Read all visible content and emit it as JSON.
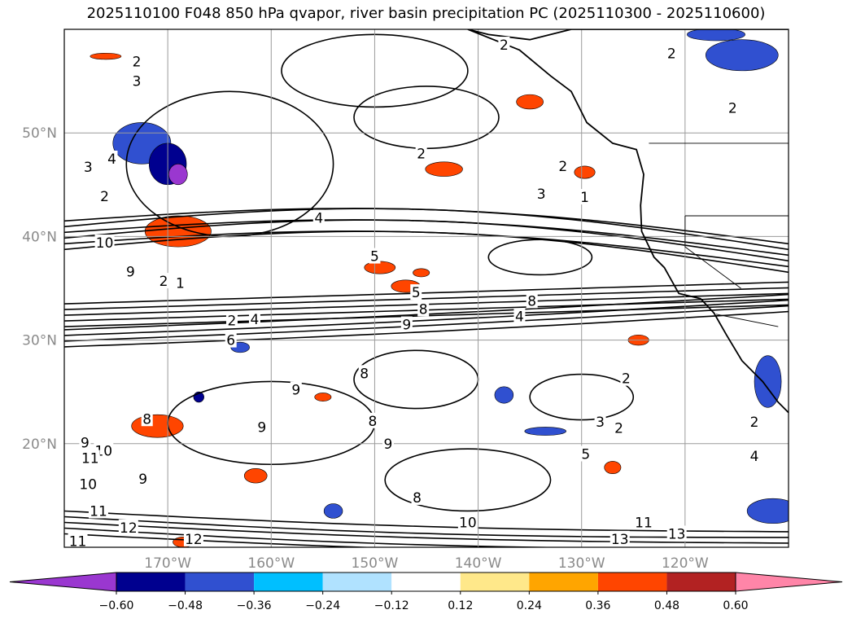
{
  "title": "2025110100 F048 850 hPa qvapor, river basin precipitation PC (2025110300 - 2025110600)",
  "chart_data": {
    "type": "contour-map",
    "title": "2025110100 F048 850 hPa qvapor, river basin precipitation PC (2025110300 - 2025110600)",
    "lon_range": [
      -180,
      -110
    ],
    "lat_range": [
      10,
      60
    ],
    "lon_ticks": [
      "170°W",
      "160°W",
      "150°W",
      "140°W",
      "130°W",
      "120°W"
    ],
    "lon_tick_values": [
      -170,
      -160,
      -150,
      -140,
      -130,
      -120
    ],
    "lat_ticks": [
      "50°N",
      "40°N",
      "30°N",
      "20°N"
    ],
    "lat_tick_values": [
      50,
      40,
      30,
      20
    ],
    "grid": true,
    "contour_field": "850 hPa qvapor",
    "contour_labels": [
      {
        "v": "2",
        "lon": -173.0,
        "lat": 56.9
      },
      {
        "v": "3",
        "lon": -173.0,
        "lat": 55.0
      },
      {
        "v": "2",
        "lon": -137.5,
        "lat": 58.5
      },
      {
        "v": "2",
        "lon": -121.3,
        "lat": 57.7
      },
      {
        "v": "2",
        "lon": -115.4,
        "lat": 52.4
      },
      {
        "v": "2",
        "lon": -145.5,
        "lat": 48.0
      },
      {
        "v": "4",
        "lon": -175.4,
        "lat": 47.5
      },
      {
        "v": "3",
        "lon": -177.7,
        "lat": 46.7
      },
      {
        "v": "2",
        "lon": -176.1,
        "lat": 43.9
      },
      {
        "v": "4",
        "lon": -155.4,
        "lat": 41.8
      },
      {
        "v": "2",
        "lon": -131.8,
        "lat": 46.8
      },
      {
        "v": "3",
        "lon": -133.9,
        "lat": 44.1
      },
      {
        "v": "1",
        "lon": -129.7,
        "lat": 43.8
      },
      {
        "v": "10",
        "lon": -176.1,
        "lat": 39.4
      },
      {
        "v": "5",
        "lon": -150.0,
        "lat": 38.1
      },
      {
        "v": "9",
        "lon": -173.6,
        "lat": 36.6
      },
      {
        "v": "2",
        "lon": -170.4,
        "lat": 35.7
      },
      {
        "v": "1",
        "lon": -168.8,
        "lat": 35.5
      },
      {
        "v": "5",
        "lon": -146.0,
        "lat": 34.6
      },
      {
        "v": "8",
        "lon": -145.3,
        "lat": 33.0
      },
      {
        "v": "8",
        "lon": -134.8,
        "lat": 33.8
      },
      {
        "v": "4",
        "lon": -136.0,
        "lat": 32.3
      },
      {
        "v": "2",
        "lon": -163.8,
        "lat": 31.9
      },
      {
        "v": "4",
        "lon": -161.6,
        "lat": 32.0
      },
      {
        "v": "9",
        "lon": -146.9,
        "lat": 31.5
      },
      {
        "v": "6",
        "lon": -163.9,
        "lat": 30.0
      },
      {
        "v": "8",
        "lon": -151.0,
        "lat": 26.8
      },
      {
        "v": "2",
        "lon": -125.7,
        "lat": 26.3
      },
      {
        "v": "9",
        "lon": -157.6,
        "lat": 25.2
      },
      {
        "v": "8",
        "lon": -172.0,
        "lat": 22.4
      },
      {
        "v": "8",
        "lon": -150.2,
        "lat": 22.2
      },
      {
        "v": "9",
        "lon": -160.9,
        "lat": 21.6
      },
      {
        "v": "3",
        "lon": -128.2,
        "lat": 22.1
      },
      {
        "v": "2",
        "lon": -126.4,
        "lat": 21.5
      },
      {
        "v": "2",
        "lon": -113.3,
        "lat": 22.1
      },
      {
        "v": "9",
        "lon": -148.7,
        "lat": 20.0
      },
      {
        "v": "9",
        "lon": -178.0,
        "lat": 20.1
      },
      {
        "v": "10",
        "lon": -176.2,
        "lat": 19.3
      },
      {
        "v": "5",
        "lon": -129.6,
        "lat": 19.0
      },
      {
        "v": "4",
        "lon": -113.3,
        "lat": 18.8
      },
      {
        "v": "11",
        "lon": -177.5,
        "lat": 18.6
      },
      {
        "v": "10",
        "lon": -177.7,
        "lat": 16.1
      },
      {
        "v": "9",
        "lon": -172.4,
        "lat": 16.6
      },
      {
        "v": "8",
        "lon": -145.9,
        "lat": 14.8
      },
      {
        "v": "11",
        "lon": -176.7,
        "lat": 13.5
      },
      {
        "v": "10",
        "lon": -141.0,
        "lat": 12.4
      },
      {
        "v": "11",
        "lon": -124.0,
        "lat": 12.4
      },
      {
        "v": "12",
        "lon": -173.8,
        "lat": 11.9
      },
      {
        "v": "11",
        "lon": -178.7,
        "lat": 10.6
      },
      {
        "v": "12",
        "lon": -167.5,
        "lat": 10.8
      },
      {
        "v": "13",
        "lon": -126.3,
        "lat": 10.8
      },
      {
        "v": "13",
        "lon": -120.8,
        "lat": 11.3
      }
    ],
    "colorbar": {
      "ticks": [
        "−0.60",
        "−0.48",
        "−0.36",
        "−0.24",
        "−0.12",
        "0.12",
        "0.24",
        "0.36",
        "0.48",
        "0.60"
      ],
      "bounds": [
        -0.72,
        -0.6,
        -0.48,
        -0.36,
        -0.24,
        -0.12,
        0.12,
        0.24,
        0.36,
        0.48,
        0.6,
        0.72
      ],
      "colors": [
        "#9a37d0",
        "#00008f",
        "#3050d0",
        "#00bfff",
        "#b0e2ff",
        "#ffffff",
        "#ffe88a",
        "#ffa500",
        "#ff4500",
        "#b22222",
        "#ff85a8"
      ],
      "extend": "both"
    },
    "shaded_patches": [
      {
        "lon": -172.5,
        "lat": 49.0,
        "rx": 2.8,
        "ry": 2.0,
        "level": 2
      },
      {
        "lon": -170.0,
        "lat": 47.0,
        "rx": 1.8,
        "ry": 2.0,
        "level": 1
      },
      {
        "lon": -169.0,
        "lat": 46.0,
        "rx": 0.9,
        "ry": 1.0,
        "level": 0
      },
      {
        "lon": -169.0,
        "lat": 40.5,
        "rx": 3.2,
        "ry": 1.5,
        "level": 8
      },
      {
        "lon": -171.0,
        "lat": 21.7,
        "rx": 2.5,
        "ry": 1.1,
        "level": 8
      },
      {
        "lon": -149.5,
        "lat": 37.0,
        "rx": 1.5,
        "ry": 0.6,
        "level": 8
      },
      {
        "lon": -147.0,
        "lat": 35.2,
        "rx": 1.4,
        "ry": 0.6,
        "level": 8
      },
      {
        "lon": -143.3,
        "lat": 46.5,
        "rx": 1.8,
        "ry": 0.7,
        "level": 8
      },
      {
        "lon": -129.7,
        "lat": 46.2,
        "rx": 1.0,
        "ry": 0.6,
        "level": 8
      },
      {
        "lon": -114.5,
        "lat": 57.5,
        "rx": 3.5,
        "ry": 1.5,
        "level": 2
      },
      {
        "lon": -117.0,
        "lat": 59.5,
        "rx": 2.8,
        "ry": 0.6,
        "level": 2
      },
      {
        "lon": -135.0,
        "lat": 53.0,
        "rx": 1.3,
        "ry": 0.7,
        "level": 8
      },
      {
        "lon": -124.5,
        "lat": 30.0,
        "rx": 1.0,
        "ry": 0.5,
        "level": 8
      },
      {
        "lon": -133.5,
        "lat": 21.2,
        "rx": 2.0,
        "ry": 0.4,
        "level": 2
      },
      {
        "lon": -127.0,
        "lat": 17.7,
        "rx": 0.8,
        "ry": 0.6,
        "level": 8
      },
      {
        "lon": -161.5,
        "lat": 16.9,
        "rx": 1.1,
        "ry": 0.7,
        "level": 8
      },
      {
        "lon": -111.5,
        "lat": 13.5,
        "rx": 2.5,
        "ry": 1.2,
        "level": 2
      },
      {
        "lon": -154.0,
        "lat": 13.5,
        "rx": 0.9,
        "ry": 0.7,
        "level": 2
      },
      {
        "lon": -112.0,
        "lat": 26.0,
        "rx": 1.3,
        "ry": 2.5,
        "level": 2
      },
      {
        "lon": -137.5,
        "lat": 24.7,
        "rx": 0.9,
        "ry": 0.8,
        "level": 2
      },
      {
        "lon": -163.0,
        "lat": 29.3,
        "rx": 0.9,
        "ry": 0.5,
        "level": 2
      },
      {
        "lon": -167.0,
        "lat": 24.5,
        "rx": 0.5,
        "ry": 0.5,
        "level": 1
      },
      {
        "lon": -168.5,
        "lat": 10.5,
        "rx": 1.0,
        "ry": 0.5,
        "level": 8
      },
      {
        "lon": -145.5,
        "lat": 36.5,
        "rx": 0.8,
        "ry": 0.4,
        "level": 8
      },
      {
        "lon": -155.0,
        "lat": 24.5,
        "rx": 0.8,
        "ry": 0.4,
        "level": 8
      },
      {
        "lon": -176.0,
        "lat": 57.4,
        "rx": 1.5,
        "ry": 0.3,
        "level": 8
      }
    ],
    "contour_bands": [
      {
        "lat0": 41.5,
        "lat1": 39.3,
        "dip": 11.0,
        "n": 6
      },
      {
        "lat0": 33.5,
        "lat1": 35.6,
        "dip": 0.0,
        "n": 5
      },
      {
        "lat0": 31.0,
        "lat1": 34.4,
        "dip": -1.0,
        "n": 4
      },
      {
        "lat0": 13.5,
        "lat1": 11.5,
        "dip": -2.5,
        "n": 5
      }
    ]
  }
}
